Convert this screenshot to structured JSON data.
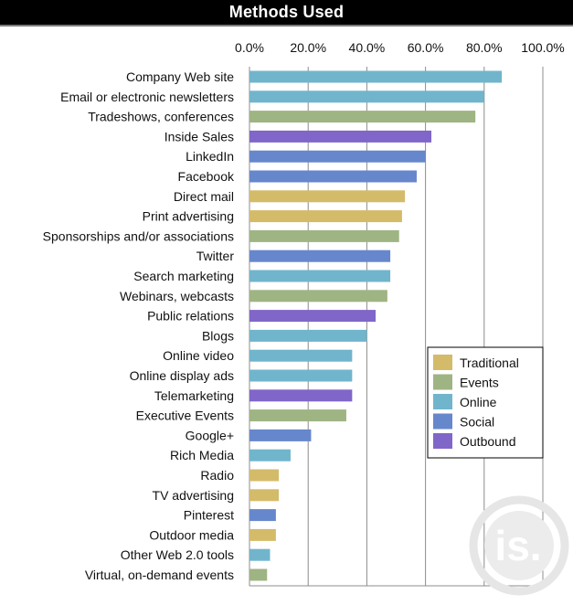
{
  "header": {
    "title": "Methods Used"
  },
  "colors": {
    "Traditional": "#d4bb6a",
    "Events": "#9fb483",
    "Online": "#70b5cc",
    "Social": "#6787cc",
    "Outbound": "#8066c9"
  },
  "chart_data": {
    "type": "bar",
    "orientation": "horizontal",
    "title": "Methods Used",
    "xlabel": "",
    "ylabel": "",
    "xlim": [
      0,
      100
    ],
    "x_ticks": [
      "0.0%",
      "20.0%",
      "40.0%",
      "60.0%",
      "80.0%",
      "100.0%"
    ],
    "grid": true,
    "legend_position": "right",
    "legend": [
      "Traditional",
      "Events",
      "Online",
      "Social",
      "Outbound"
    ],
    "categories": [
      "Company Web site",
      "Email or electronic newsletters",
      "Tradeshows, conferences",
      "Inside Sales",
      "LinkedIn",
      "Facebook",
      "Direct mail",
      "Print advertising",
      "Sponsorships and/or associations",
      "Twitter",
      "Search marketing",
      "Webinars, webcasts",
      "Public relations",
      "Blogs",
      "Online video",
      "Online display ads",
      "Telemarketing",
      "Executive Events",
      "Google+",
      "Rich Media",
      "Radio",
      "TV advertising",
      "Pinterest",
      "Outdoor media",
      "Other Web 2.0 tools",
      "Virtual, on-demand events"
    ],
    "values": [
      86,
      80,
      77,
      62,
      60,
      57,
      53,
      52,
      51,
      48,
      48,
      47,
      43,
      40,
      35,
      35,
      35,
      33,
      21,
      14,
      10,
      10,
      9,
      9,
      7,
      6
    ],
    "groups": [
      "Online",
      "Online",
      "Events",
      "Outbound",
      "Social",
      "Social",
      "Traditional",
      "Traditional",
      "Events",
      "Social",
      "Online",
      "Events",
      "Outbound",
      "Online",
      "Online",
      "Online",
      "Outbound",
      "Events",
      "Social",
      "Online",
      "Traditional",
      "Traditional",
      "Social",
      "Traditional",
      "Online",
      "Events"
    ]
  }
}
